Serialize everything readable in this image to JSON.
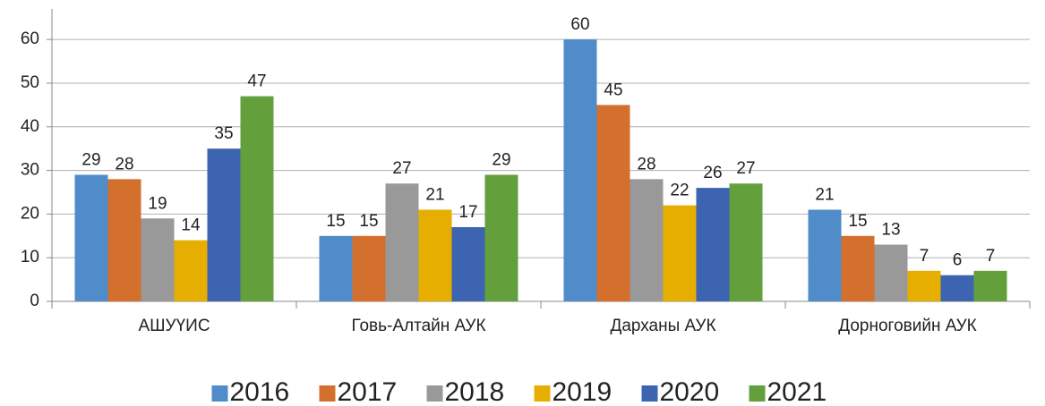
{
  "chart_data": {
    "type": "bar",
    "categories": [
      "АШУҮИС",
      "Говь-Алтайн АУК",
      "Дарханы АУК",
      "Дорноговийн АУК"
    ],
    "series": [
      {
        "name": "2016",
        "color": "#4f8cc9",
        "values": [
          29,
          15,
          60,
          21
        ]
      },
      {
        "name": "2017",
        "color": "#d4702e",
        "values": [
          28,
          15,
          45,
          15
        ]
      },
      {
        "name": "2018",
        "color": "#999999",
        "values": [
          19,
          27,
          28,
          13
        ]
      },
      {
        "name": "2019",
        "color": "#e6ae00",
        "values": [
          14,
          21,
          22,
          7
        ]
      },
      {
        "name": "2020",
        "color": "#3c64b0",
        "values": [
          35,
          17,
          26,
          6
        ]
      },
      {
        "name": "2021",
        "color": "#63a03c",
        "values": [
          47,
          29,
          27,
          7
        ]
      }
    ],
    "ylim": [
      0,
      67
    ],
    "yticks": [
      0,
      10,
      20,
      30,
      40,
      50,
      60
    ],
    "grid": true,
    "legend": "bottom"
  }
}
